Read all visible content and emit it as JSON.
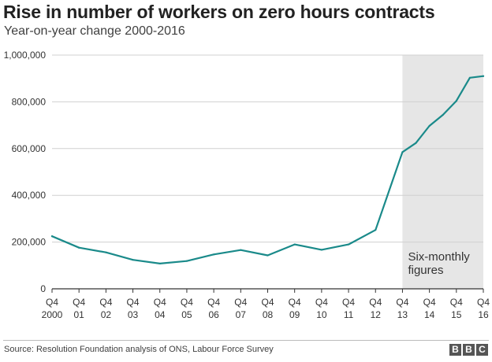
{
  "title": "Rise in number of workers on zero hours contracts",
  "subtitle": "Year-on-year change 2000-2016",
  "source": "Source: Resolution Foundation analysis of ONS, Labour Force Survey",
  "logo": "BBC",
  "colors": {
    "line": "#1a8a8a",
    "shade": "#e6e6e6",
    "grid": "#d0d0d0",
    "axis": "#333333"
  },
  "chart_data": {
    "type": "line",
    "title": "Rise in number of workers on zero hours contracts",
    "subtitle": "Year-on-year change 2000-2016",
    "xlabel": "",
    "ylabel": "",
    "ylim": [
      0,
      1000000
    ],
    "yticks": [
      0,
      200000,
      400000,
      600000,
      800000,
      1000000
    ],
    "ytick_labels": [
      "0",
      "200,000",
      "400,000",
      "600,000",
      "800,000",
      "1,000,000"
    ],
    "grid": true,
    "xtick_labels": [
      [
        "Q4",
        "2000"
      ],
      [
        "Q4",
        "01"
      ],
      [
        "Q4",
        "02"
      ],
      [
        "Q4",
        "03"
      ],
      [
        "Q4",
        "04"
      ],
      [
        "Q4",
        "05"
      ],
      [
        "Q4",
        "06"
      ],
      [
        "Q4",
        "07"
      ],
      [
        "Q4",
        "08"
      ],
      [
        "Q4",
        "09"
      ],
      [
        "Q4",
        "10"
      ],
      [
        "Q4",
        "11"
      ],
      [
        "Q4",
        "12"
      ],
      [
        "Q4",
        "13"
      ],
      [
        "Q4",
        "14"
      ],
      [
        "Q4",
        "15"
      ],
      [
        "Q4",
        "16"
      ]
    ],
    "x": [
      2000,
      2001,
      2002,
      2003,
      2004,
      2005,
      2006,
      2007,
      2008,
      2009,
      2010,
      2011,
      2012,
      2013,
      2013.5,
      2014,
      2014.5,
      2015,
      2015.5,
      2016
    ],
    "values": [
      225000,
      176000,
      156000,
      124000,
      108000,
      119000,
      147000,
      166000,
      143000,
      190000,
      167000,
      190000,
      252000,
      585000,
      624000,
      697000,
      744000,
      804000,
      903000,
      910000
    ],
    "shaded_region": {
      "x_start": 2013,
      "x_end": 2016,
      "label": [
        "Six-monthly",
        "figures"
      ]
    }
  }
}
